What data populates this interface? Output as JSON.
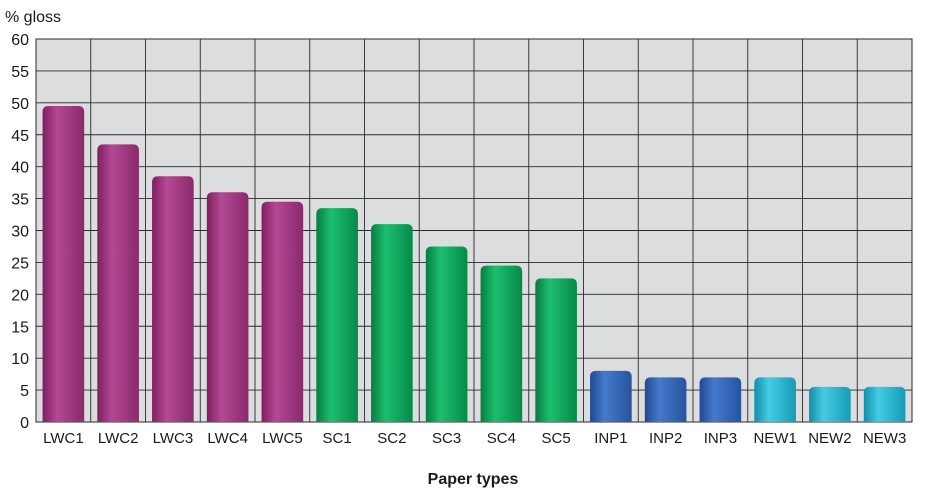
{
  "chart_data": {
    "type": "bar",
    "ylabel": "% gloss",
    "xlabel": "Paper types",
    "ylim": [
      0,
      60
    ],
    "yticks": [
      0,
      5,
      10,
      15,
      20,
      25,
      30,
      35,
      40,
      45,
      50,
      55,
      60
    ],
    "grid": true,
    "legend": "none",
    "categories": [
      "LWC1",
      "LWC2",
      "LWC3",
      "LWC4",
      "LWC5",
      "SC1",
      "SC2",
      "SC3",
      "SC4",
      "SC5",
      "INP1",
      "INP2",
      "INP3",
      "NEW1",
      "NEW2",
      "NEW3"
    ],
    "values": [
      49.5,
      43.5,
      38.5,
      36,
      34.5,
      33.5,
      31,
      27.5,
      24.5,
      22.5,
      8,
      7,
      7,
      7,
      5.5,
      5.5
    ],
    "bar_colors": [
      "#a0357e",
      "#a0357e",
      "#a0357e",
      "#a0357e",
      "#a0357e",
      "#0aa359",
      "#0aa359",
      "#0aa359",
      "#0aa359",
      "#0aa359",
      "#2e62b4",
      "#2e62b4",
      "#2e62b4",
      "#26b3cf",
      "#26b3cf",
      "#26b3cf"
    ],
    "plot_background": "#dcdddf",
    "grid_color": "#2a2a2a"
  }
}
